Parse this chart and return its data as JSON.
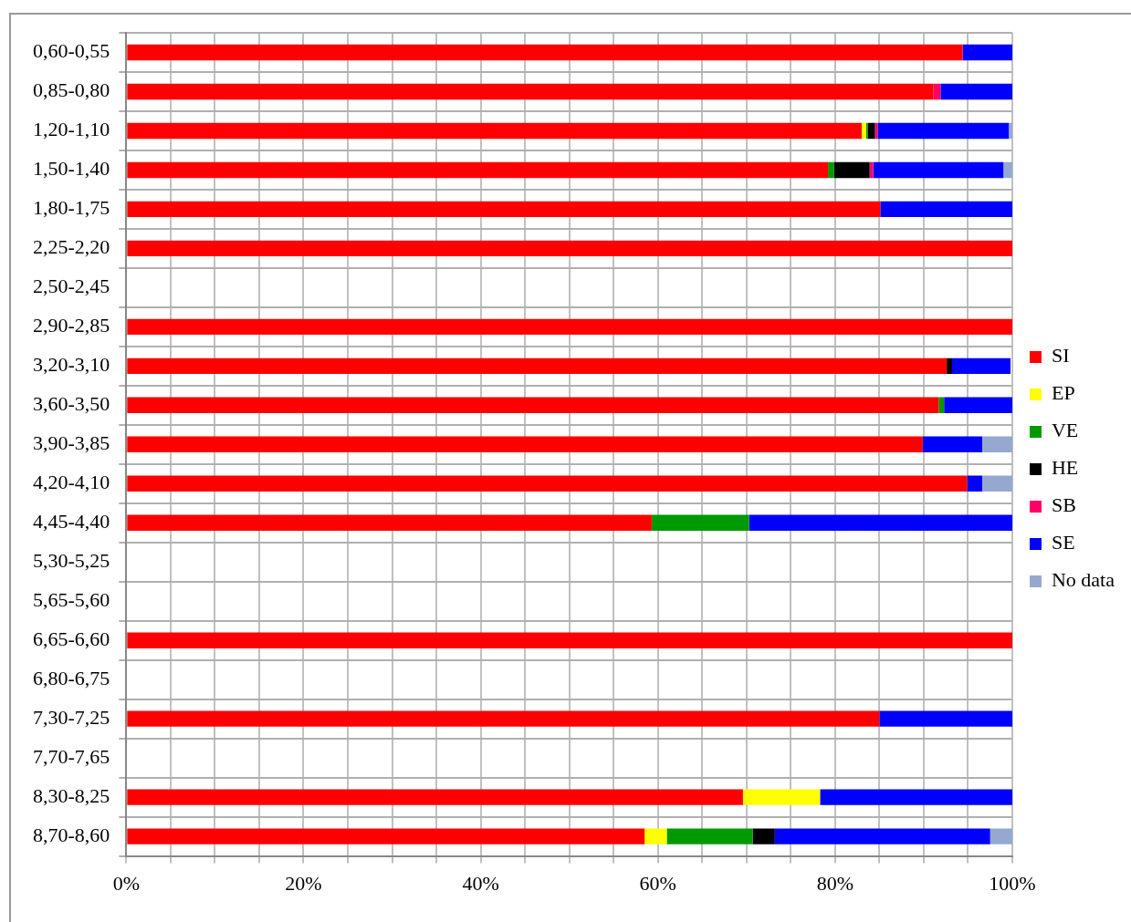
{
  "chart_data": {
    "type": "bar",
    "orientation": "horizontal",
    "stacked": true,
    "categories": [
      "0,60-0,55",
      "0,85-0,80",
      "1,20-1,10",
      "1,50-1,40",
      "1,80-1,75",
      "2,25-2,20",
      "2,50-2,45",
      "2,90-2,85",
      "3,20-3,10",
      "3,60-3,50",
      "3,90-3,85",
      "4,20-4,10",
      "4,45-4,40",
      "5,30-5,25",
      "5,65-5,60",
      "6,65-6,60",
      "6,80-6,75",
      "7,30-7,25",
      "7,70-7,65",
      "8,30-8,25",
      "8,70-8,60"
    ],
    "series": [
      {
        "name": "SI",
        "color": "#ff0000",
        "values": [
          94.4,
          91.1,
          83.0,
          79.2,
          85.1,
          100,
          null,
          100,
          92.6,
          91.7,
          89.9,
          94.9,
          59.3,
          null,
          null,
          100,
          null,
          85.0,
          null,
          69.6,
          58.5
        ]
      },
      {
        "name": "EP",
        "color": "#ffff00",
        "values": [
          0,
          0,
          0.5,
          0,
          0,
          0,
          null,
          0,
          0,
          0,
          0,
          0,
          0,
          null,
          null,
          0,
          null,
          0,
          null,
          8.7,
          2.5
        ]
      },
      {
        "name": "VE",
        "color": "#009900",
        "values": [
          0,
          0,
          0.2,
          0.7,
          0,
          0,
          null,
          0,
          0,
          0.6,
          0,
          0,
          11.0,
          null,
          null,
          0,
          null,
          0,
          null,
          0,
          9.7
        ]
      },
      {
        "name": "HE",
        "color": "#000000",
        "values": [
          0,
          0,
          0.8,
          4.0,
          0,
          0,
          null,
          0,
          0.6,
          0,
          0,
          0,
          0,
          null,
          null,
          0,
          null,
          0,
          null,
          0,
          2.5
        ]
      },
      {
        "name": "SB",
        "color": "#ff0066",
        "values": [
          0,
          0.8,
          0.3,
          0.4,
          0,
          0,
          null,
          0,
          0,
          0,
          0,
          0,
          0,
          null,
          null,
          0,
          null,
          0,
          null,
          0,
          0
        ]
      },
      {
        "name": "SE",
        "color": "#0000ff",
        "values": [
          5.6,
          8.1,
          14.8,
          14.7,
          14.9,
          0,
          null,
          0,
          6.6,
          7.7,
          6.7,
          1.7,
          29.7,
          null,
          null,
          0,
          null,
          15.0,
          null,
          21.7,
          24.3
        ]
      },
      {
        "name": "No data",
        "color": "#95a9d0",
        "values": [
          0,
          0,
          0.5,
          1.0,
          0,
          0,
          null,
          0,
          null,
          0,
          3.4,
          3.4,
          0,
          null,
          null,
          0,
          null,
          0,
          null,
          0,
          2.5
        ]
      }
    ],
    "xlim": [
      0,
      100
    ],
    "xticks": [
      {
        "value": 0,
        "label": "0%"
      },
      {
        "value": 5,
        "label": null
      },
      {
        "value": 10,
        "label": null
      },
      {
        "value": 15,
        "label": null
      },
      {
        "value": 20,
        "label": "20%"
      },
      {
        "value": 25,
        "label": null
      },
      {
        "value": 30,
        "label": null
      },
      {
        "value": 35,
        "label": null
      },
      {
        "value": 40,
        "label": "40%"
      },
      {
        "value": 45,
        "label": null
      },
      {
        "value": 50,
        "label": null
      },
      {
        "value": 55,
        "label": null
      },
      {
        "value": 60,
        "label": "60%"
      },
      {
        "value": 65,
        "label": null
      },
      {
        "value": 70,
        "label": null
      },
      {
        "value": 75,
        "label": null
      },
      {
        "value": 80,
        "label": "80%"
      },
      {
        "value": 85,
        "label": null
      },
      {
        "value": 90,
        "label": null
      },
      {
        "value": 95,
        "label": null
      },
      {
        "value": 100,
        "label": "100%"
      }
    ],
    "grid": true,
    "legend": "right"
  }
}
